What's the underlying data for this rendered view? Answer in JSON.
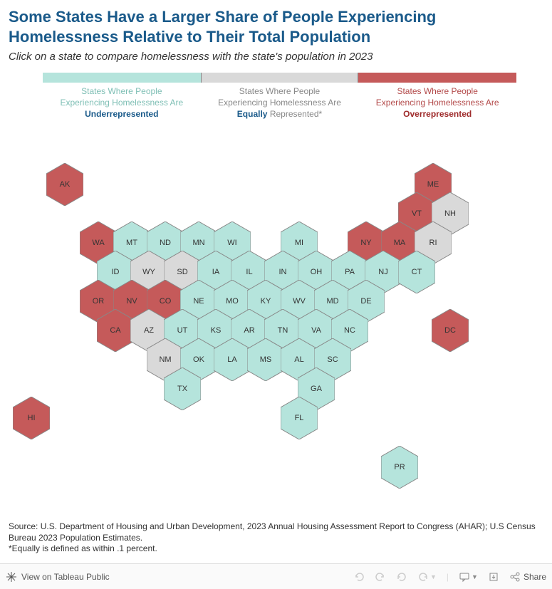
{
  "title": "Some States Have a Larger Share of People Experiencing Homelessness Relative to Their Total Population",
  "subtitle": "Click on a state to compare homelessness with the state's population in 2023",
  "legend": {
    "under": {
      "line1": "States Where People",
      "line2": "Experiencing Homelessness Are",
      "bold": "Underrepresented"
    },
    "equal": {
      "line1": "States Where People",
      "line2": "Experiencing Homelessness Are",
      "bold": "Equally",
      "after": " Represented*"
    },
    "over": {
      "line1": "States Where People",
      "line2": "Experiencing Homelessness Are",
      "bold": "Overrepresented"
    }
  },
  "colors": {
    "under": "#b5e4dc",
    "equal": "#d9d9d9",
    "over": "#c55a5a",
    "stroke": "#888888"
  },
  "hex": {
    "w": 52,
    "h": 60,
    "xstep": 47,
    "ystep": 41,
    "rowoffset": 23.5,
    "originX": 65,
    "originY": 40
  },
  "states": [
    {
      "abbr": "AK",
      "cat": "over",
      "col": 0,
      "row": 0
    },
    {
      "abbr": "ME",
      "cat": "over",
      "col": 11,
      "row": 0
    },
    {
      "abbr": "VT",
      "cat": "over",
      "col": 10,
      "row": 1
    },
    {
      "abbr": "NH",
      "cat": "equal",
      "col": 11,
      "row": 1
    },
    {
      "abbr": "WA",
      "cat": "over",
      "col": 1,
      "row": 2
    },
    {
      "abbr": "MT",
      "cat": "under",
      "col": 2,
      "row": 2
    },
    {
      "abbr": "ND",
      "cat": "under",
      "col": 3,
      "row": 2
    },
    {
      "abbr": "MN",
      "cat": "under",
      "col": 4,
      "row": 2
    },
    {
      "abbr": "WI",
      "cat": "under",
      "col": 5,
      "row": 2
    },
    {
      "abbr": "MI",
      "cat": "under",
      "col": 7,
      "row": 2
    },
    {
      "abbr": "NY",
      "cat": "over",
      "col": 9,
      "row": 2
    },
    {
      "abbr": "MA",
      "cat": "over",
      "col": 10,
      "row": 2
    },
    {
      "abbr": "RI",
      "cat": "equal",
      "col": 11,
      "row": 2
    },
    {
      "abbr": "ID",
      "cat": "under",
      "col": 1,
      "row": 3
    },
    {
      "abbr": "WY",
      "cat": "equal",
      "col": 2,
      "row": 3
    },
    {
      "abbr": "SD",
      "cat": "equal",
      "col": 3,
      "row": 3
    },
    {
      "abbr": "IA",
      "cat": "under",
      "col": 4,
      "row": 3
    },
    {
      "abbr": "IL",
      "cat": "under",
      "col": 5,
      "row": 3
    },
    {
      "abbr": "IN",
      "cat": "under",
      "col": 6,
      "row": 3
    },
    {
      "abbr": "OH",
      "cat": "under",
      "col": 7,
      "row": 3
    },
    {
      "abbr": "PA",
      "cat": "under",
      "col": 8,
      "row": 3
    },
    {
      "abbr": "NJ",
      "cat": "under",
      "col": 9,
      "row": 3
    },
    {
      "abbr": "CT",
      "cat": "under",
      "col": 10,
      "row": 3
    },
    {
      "abbr": "OR",
      "cat": "over",
      "col": 1,
      "row": 4
    },
    {
      "abbr": "NV",
      "cat": "over",
      "col": 2,
      "row": 4
    },
    {
      "abbr": "CO",
      "cat": "over",
      "col": 3,
      "row": 4
    },
    {
      "abbr": "NE",
      "cat": "under",
      "col": 4,
      "row": 4
    },
    {
      "abbr": "MO",
      "cat": "under",
      "col": 5,
      "row": 4
    },
    {
      "abbr": "KY",
      "cat": "under",
      "col": 6,
      "row": 4
    },
    {
      "abbr": "WV",
      "cat": "under",
      "col": 7,
      "row": 4
    },
    {
      "abbr": "MD",
      "cat": "under",
      "col": 8,
      "row": 4
    },
    {
      "abbr": "DE",
      "cat": "under",
      "col": 9,
      "row": 4
    },
    {
      "abbr": "CA",
      "cat": "over",
      "col": 1,
      "row": 5
    },
    {
      "abbr": "AZ",
      "cat": "equal",
      "col": 2,
      "row": 5
    },
    {
      "abbr": "UT",
      "cat": "under",
      "col": 3,
      "row": 5
    },
    {
      "abbr": "KS",
      "cat": "under",
      "col": 4,
      "row": 5
    },
    {
      "abbr": "AR",
      "cat": "under",
      "col": 5,
      "row": 5
    },
    {
      "abbr": "TN",
      "cat": "under",
      "col": 6,
      "row": 5
    },
    {
      "abbr": "VA",
      "cat": "under",
      "col": 7,
      "row": 5
    },
    {
      "abbr": "NC",
      "cat": "under",
      "col": 8,
      "row": 5
    },
    {
      "abbr": "DC",
      "cat": "over",
      "col": 11,
      "row": 5
    },
    {
      "abbr": "NM",
      "cat": "equal",
      "col": 3,
      "row": 6
    },
    {
      "abbr": "OK",
      "cat": "under",
      "col": 4,
      "row": 6
    },
    {
      "abbr": "LA",
      "cat": "under",
      "col": 5,
      "row": 6
    },
    {
      "abbr": "MS",
      "cat": "under",
      "col": 6,
      "row": 6
    },
    {
      "abbr": "AL",
      "cat": "under",
      "col": 7,
      "row": 6
    },
    {
      "abbr": "SC",
      "cat": "under",
      "col": 8,
      "row": 6
    },
    {
      "abbr": "TX",
      "cat": "under",
      "col": 3,
      "row": 7
    },
    {
      "abbr": "GA",
      "cat": "under",
      "col": 7,
      "row": 7
    },
    {
      "abbr": "HI",
      "cat": "over",
      "col": -1,
      "row": 8
    },
    {
      "abbr": "FL",
      "cat": "under",
      "col": 7,
      "row": 8
    },
    {
      "abbr": "PR",
      "cat": "under",
      "col": 10,
      "row": 9.7
    }
  ],
  "source": "Source: U.S. Department of Housing and Urban Development, 2023 Annual Housing Assessment Report to Congress (AHAR); U.S Census Bureau 2023 Population Estimates.\n*Equally is defined as within .1 percent.",
  "toolbar": {
    "view": "View on Tableau Public",
    "share": "Share"
  }
}
